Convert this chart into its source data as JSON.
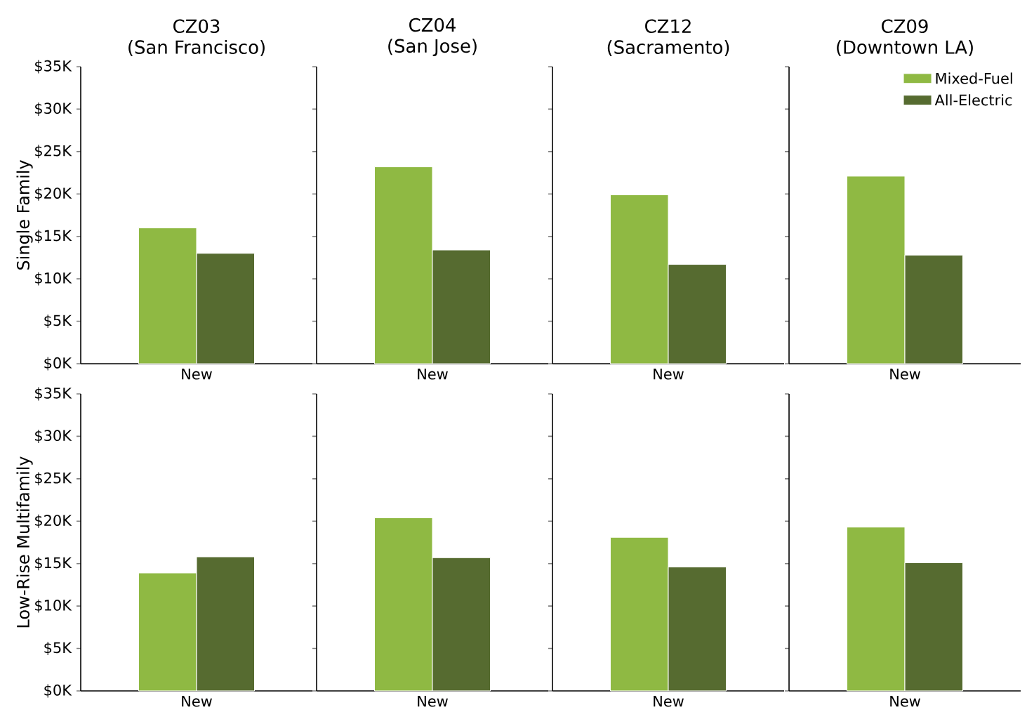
{
  "chart_data": [
    {
      "type": "bar",
      "title": "CZ03",
      "subtitle": "(San Francisco)",
      "ylabel": "Single Family",
      "categories": [
        "New"
      ],
      "series": [
        {
          "color": "#8fb943",
          "values": [
            16
          ]
        },
        {
          "color": "#566b30",
          "values": [
            13
          ]
        }
      ],
      "ylim": [
        0,
        35
      ],
      "yticks": [
        {
          "value": 0,
          "label": "$0K"
        },
        {
          "value": 5,
          "label": "$5K"
        },
        {
          "value": 10,
          "label": "$10K"
        },
        {
          "value": 15,
          "label": "$15K"
        },
        {
          "value": 20,
          "label": "$20K"
        },
        {
          "value": 25,
          "label": "$25K"
        },
        {
          "value": 30,
          "label": "$30K"
        },
        {
          "value": 35,
          "label": "$35K"
        }
      ]
    },
    {
      "type": "bar",
      "title": "CZ04",
      "subtitle": "(San Jose)",
      "categories": [
        "New"
      ],
      "series": [
        {
          "color": "#8fb943",
          "values": [
            23.2
          ]
        },
        {
          "color": "#566b30",
          "values": [
            13.4
          ]
        }
      ],
      "ylim": [
        0,
        35
      ],
      "yticks": [
        {
          "value": 0,
          "label": null
        },
        {
          "value": 5,
          "label": null
        },
        {
          "value": 10,
          "label": null
        },
        {
          "value": 15,
          "label": null
        },
        {
          "value": 20,
          "label": null
        },
        {
          "value": 25,
          "label": null
        },
        {
          "value": 30,
          "label": null
        },
        {
          "value": 35,
          "label": null
        }
      ],
      "tick_labels": "x"
    },
    {
      "type": "bar",
      "title": "CZ12",
      "subtitle": "(Sacramento)",
      "categories": [
        "New"
      ],
      "series": [
        {
          "color": "#8fb943",
          "values": [
            19.9
          ]
        },
        {
          "color": "#566b30",
          "values": [
            11.7
          ]
        }
      ],
      "ylim": [
        0,
        35
      ],
      "yticks": [
        {
          "value": 0,
          "label": null
        },
        {
          "value": 5,
          "label": null
        },
        {
          "value": 10,
          "label": null
        },
        {
          "value": 15,
          "label": null
        },
        {
          "value": 20,
          "label": null
        },
        {
          "value": 25,
          "label": null
        },
        {
          "value": 30,
          "label": null
        },
        {
          "value": 35,
          "label": null
        }
      ],
      "tick_labels": "x"
    },
    {
      "type": "bar",
      "title": "CZ09",
      "subtitle": "(Downtown LA)",
      "categories": [
        "New"
      ],
      "series": [
        {
          "name": "Mixed-Fuel",
          "color": "#8fb943",
          "values": [
            22.1
          ]
        },
        {
          "name": "All-Electric",
          "color": "#566b30",
          "values": [
            12.8
          ]
        }
      ],
      "ylim": [
        0,
        35
      ],
      "yticks": [
        {
          "value": 0,
          "label": null
        },
        {
          "value": 5,
          "label": null
        },
        {
          "value": 10,
          "label": null
        },
        {
          "value": 15,
          "label": null
        },
        {
          "value": 20,
          "label": null
        },
        {
          "value": 25,
          "label": null
        },
        {
          "value": 30,
          "label": null
        },
        {
          "value": 35,
          "label": null
        }
      ],
      "tick_labels": "x",
      "legend": "top right"
    },
    {
      "type": "bar",
      "ylabel": "Low-Rise Multifamily",
      "categories": [
        "New"
      ],
      "series": [
        {
          "color": "#8fb943",
          "values": [
            13.9
          ]
        },
        {
          "color": "#566b30",
          "values": [
            15.8
          ]
        }
      ],
      "ylim": [
        0,
        35
      ],
      "yticks": [
        {
          "value": 0,
          "label": "$0K"
        },
        {
          "value": 5,
          "label": "$5K"
        },
        {
          "value": 10,
          "label": "$10K"
        },
        {
          "value": 15,
          "label": "$15K"
        },
        {
          "value": 20,
          "label": "$20K"
        },
        {
          "value": 25,
          "label": "$25K"
        },
        {
          "value": 30,
          "label": "$30K"
        },
        {
          "value": 35,
          "label": "$35K"
        }
      ]
    },
    {
      "type": "bar",
      "categories": [
        "New"
      ],
      "series": [
        {
          "color": "#8fb943",
          "values": [
            20.4
          ]
        },
        {
          "color": "#566b30",
          "values": [
            15.7
          ]
        }
      ],
      "ylim": [
        0,
        35
      ],
      "yticks": [
        {
          "value": 0,
          "label": null
        },
        {
          "value": 5,
          "label": null
        },
        {
          "value": 10,
          "label": null
        },
        {
          "value": 15,
          "label": null
        },
        {
          "value": 20,
          "label": null
        },
        {
          "value": 25,
          "label": null
        },
        {
          "value": 30,
          "label": null
        },
        {
          "value": 35,
          "label": null
        }
      ],
      "tick_labels": "x"
    },
    {
      "type": "bar",
      "categories": [
        "New"
      ],
      "series": [
        {
          "color": "#8fb943",
          "values": [
            18.1
          ]
        },
        {
          "color": "#566b30",
          "values": [
            14.6
          ]
        }
      ],
      "ylim": [
        0,
        35
      ],
      "yticks": [
        {
          "value": 0,
          "label": null
        },
        {
          "value": 5,
          "label": null
        },
        {
          "value": 10,
          "label": null
        },
        {
          "value": 15,
          "label": null
        },
        {
          "value": 20,
          "label": null
        },
        {
          "value": 25,
          "label": null
        },
        {
          "value": 30,
          "label": null
        },
        {
          "value": 35,
          "label": null
        }
      ],
      "tick_labels": "x"
    },
    {
      "type": "bar",
      "categories": [
        "New"
      ],
      "series": [
        {
          "color": "#8fb943",
          "values": [
            19.3
          ]
        },
        {
          "color": "#566b30",
          "values": [
            15.1
          ]
        }
      ],
      "ylim": [
        0,
        35
      ],
      "yticks": [
        {
          "value": 0,
          "label": null
        },
        {
          "value": 5,
          "label": null
        },
        {
          "value": 10,
          "label": null
        },
        {
          "value": 15,
          "label": null
        },
        {
          "value": 20,
          "label": null
        },
        {
          "value": 25,
          "label": null
        },
        {
          "value": 30,
          "label": null
        },
        {
          "value": 35,
          "label": null
        }
      ],
      "tick_labels": "x"
    }
  ]
}
